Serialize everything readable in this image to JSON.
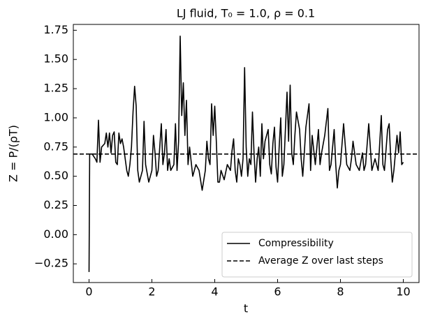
{
  "chart_data": {
    "type": "line",
    "title": "LJ fluid, T₀ = 1.0, ρ = 0.1",
    "xlabel": "t",
    "ylabel": "Z = P/(ρT)",
    "xlim": [
      -0.5,
      10.5
    ],
    "ylim": [
      -0.41,
      1.8
    ],
    "xticks": [
      0,
      2,
      4,
      6,
      8,
      10
    ],
    "yticks": [
      {
        "value": -0.25,
        "label": "−0.25"
      },
      {
        "value": 0,
        "label": "0.00"
      },
      {
        "value": 0.25,
        "label": "0.25"
      },
      {
        "value": 0.5,
        "label": "0.50"
      },
      {
        "value": 0.75,
        "label": "0.75"
      },
      {
        "value": 1,
        "label": "1.00"
      },
      {
        "value": 1.25,
        "label": "1.25"
      },
      {
        "value": 1.5,
        "label": "1.50"
      },
      {
        "value": 1.75,
        "label": "1.75"
      }
    ],
    "legend": "lower right",
    "x": [
      0,
      0.02,
      0.1,
      0.2,
      0.25,
      0.3,
      0.35,
      0.4,
      0.5,
      0.55,
      0.6,
      0.65,
      0.7,
      0.75,
      0.8,
      0.85,
      0.9,
      0.95,
      1.0,
      1.05,
      1.1,
      1.2,
      1.25,
      1.3,
      1.35,
      1.4,
      1.45,
      1.5,
      1.55,
      1.6,
      1.7,
      1.75,
      1.8,
      1.9,
      2.0,
      2.05,
      2.1,
      2.15,
      2.2,
      2.3,
      2.35,
      2.4,
      2.45,
      2.5,
      2.55,
      2.6,
      2.7,
      2.75,
      2.8,
      2.85,
      2.9,
      2.95,
      3.0,
      3.05,
      3.1,
      3.15,
      3.2,
      3.3,
      3.4,
      3.5,
      3.6,
      3.7,
      3.75,
      3.8,
      3.85,
      3.9,
      3.95,
      4.0,
      4.05,
      4.1,
      4.15,
      4.2,
      4.3,
      4.4,
      4.5,
      4.55,
      4.6,
      4.65,
      4.7,
      4.75,
      4.8,
      4.85,
      4.9,
      4.95,
      5.0,
      5.05,
      5.1,
      5.15,
      5.2,
      5.25,
      5.3,
      5.35,
      5.4,
      5.45,
      5.5,
      5.55,
      5.6,
      5.7,
      5.75,
      5.8,
      5.85,
      5.9,
      5.95,
      6.0,
      6.05,
      6.1,
      6.15,
      6.2,
      6.3,
      6.35,
      6.4,
      6.45,
      6.5,
      6.55,
      6.6,
      6.7,
      6.75,
      6.8,
      6.85,
      6.9,
      7.0,
      7.05,
      7.1,
      7.2,
      7.3,
      7.35,
      7.4,
      7.5,
      7.6,
      7.65,
      7.7,
      7.8,
      7.85,
      7.9,
      7.95,
      8.0,
      8.1,
      8.2,
      8.3,
      8.35,
      8.4,
      8.5,
      8.6,
      8.7,
      8.75,
      8.8,
      8.9,
      9.0,
      9.1,
      9.2,
      9.3,
      9.35,
      9.4,
      9.5,
      9.55,
      9.6,
      9.65,
      9.7,
      9.8,
      9.85,
      9.9,
      9.95,
      10.0
    ],
    "series": [
      {
        "name": "Compressibility",
        "color": "#000000",
        "linestyle": "solid",
        "values": [
          -0.32,
          0.69,
          0.69,
          0.65,
          0.62,
          0.98,
          0.62,
          0.75,
          0.78,
          0.87,
          0.75,
          0.87,
          0.7,
          0.85,
          0.88,
          0.62,
          0.6,
          0.87,
          0.78,
          0.82,
          0.75,
          0.55,
          0.5,
          0.6,
          0.75,
          1.05,
          1.27,
          1.1,
          0.55,
          0.45,
          0.55,
          0.97,
          0.6,
          0.45,
          0.55,
          0.85,
          0.7,
          0.5,
          0.55,
          0.95,
          0.6,
          0.7,
          0.9,
          0.55,
          0.65,
          0.55,
          0.6,
          0.95,
          0.55,
          0.8,
          1.7,
          1.02,
          1.3,
          0.85,
          1.15,
          0.6,
          0.75,
          0.5,
          0.6,
          0.55,
          0.38,
          0.55,
          0.8,
          0.65,
          0.6,
          1.12,
          0.85,
          1.1,
          0.8,
          0.45,
          0.45,
          0.55,
          0.47,
          0.6,
          0.55,
          0.72,
          0.82,
          0.55,
          0.45,
          0.65,
          0.6,
          0.5,
          0.65,
          1.43,
          0.75,
          0.5,
          0.65,
          0.6,
          1.05,
          0.7,
          0.45,
          0.65,
          0.75,
          0.5,
          0.95,
          0.65,
          0.8,
          0.9,
          0.6,
          0.52,
          0.78,
          0.92,
          0.58,
          0.45,
          0.75,
          1.0,
          0.5,
          0.6,
          1.22,
          0.8,
          1.28,
          0.7,
          0.6,
          0.85,
          1.05,
          0.9,
          0.65,
          0.5,
          0.7,
          0.92,
          1.12,
          0.55,
          0.85,
          0.6,
          0.9,
          0.6,
          0.7,
          0.85,
          1.08,
          0.55,
          0.6,
          0.9,
          0.6,
          0.4,
          0.55,
          0.6,
          0.95,
          0.6,
          0.55,
          0.65,
          0.8,
          0.6,
          0.55,
          0.7,
          0.55,
          0.6,
          0.95,
          0.55,
          0.65,
          0.55,
          1.02,
          0.6,
          0.55,
          0.9,
          0.95,
          0.65,
          0.45,
          0.55,
          0.85,
          0.7,
          0.88,
          0.6,
          0.62
        ]
      },
      {
        "name": "Average Z over last steps",
        "color": "#000000",
        "linestyle": "dashed",
        "y": 0.69
      }
    ]
  }
}
